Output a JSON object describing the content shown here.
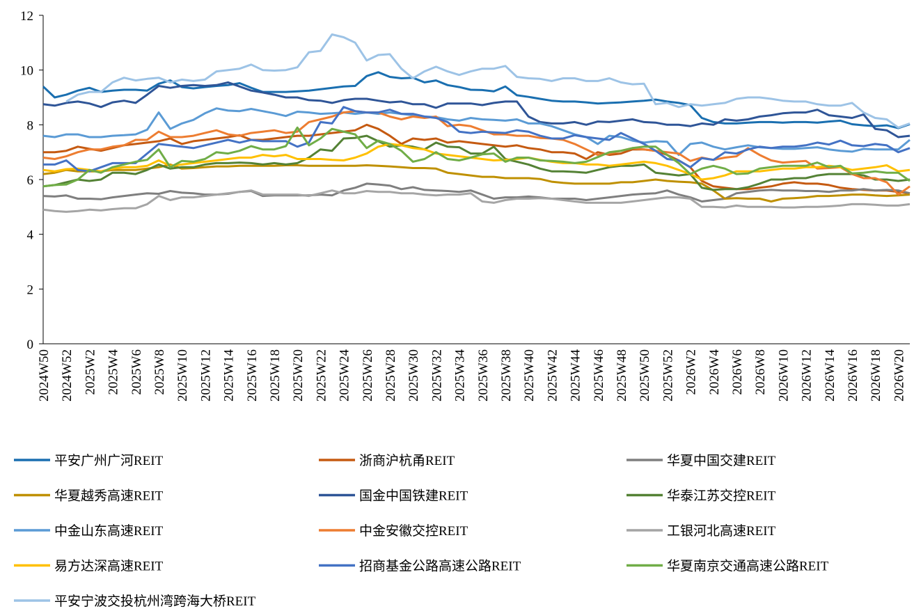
{
  "chart_data": {
    "type": "line",
    "categories": [
      "2024W50",
      null,
      "2024W52",
      null,
      "2025W2",
      null,
      "2025W4",
      null,
      "2025W6",
      null,
      "2025W8",
      null,
      "2025W10",
      null,
      "2025W12",
      null,
      "2025W14",
      null,
      "2025W16",
      null,
      "2025W18",
      null,
      "2025W20",
      null,
      "2025W22",
      null,
      "2025W24",
      null,
      "2025W26",
      null,
      "2025W28",
      null,
      "2025W30",
      null,
      "2025W32",
      null,
      "2025W34",
      null,
      "2025W36",
      null,
      "2025W38",
      null,
      "2025W40",
      null,
      "2025W42",
      null,
      "2025W44",
      null,
      "2025W46",
      null,
      "2025W48",
      null,
      "2025W50",
      null,
      "2025W52",
      null,
      "2026W2",
      null,
      "2026W4",
      null,
      "2026W6",
      null,
      "2026W8",
      null,
      "2026W10",
      null,
      "2026W12",
      null,
      "2026W14",
      null,
      "2026W16",
      null,
      "2026W18",
      null,
      "2026W20",
      null
    ],
    "ylim": [
      0,
      12
    ],
    "yticks": [
      0,
      2,
      4,
      6,
      8,
      10,
      12
    ],
    "grid": false,
    "series": [
      {
        "name": "平安广州广河REIT",
        "color": "#1a6fb0",
        "values": [
          9.4,
          9.0,
          9.1,
          9.25,
          9.35,
          9.2,
          9.25,
          9.28,
          9.28,
          9.25,
          9.5,
          9.62,
          9.38,
          9.33,
          9.38,
          9.42,
          9.45,
          9.52,
          9.35,
          9.2,
          9.2,
          9.2,
          9.22,
          9.25,
          9.3,
          9.35,
          9.4,
          9.42,
          9.78,
          9.92,
          9.75,
          9.7,
          9.72,
          9.55,
          9.62,
          9.45,
          9.38,
          9.28,
          9.27,
          9.22,
          9.4,
          9.08,
          9.02,
          8.95,
          8.88,
          8.85,
          8.85,
          8.82,
          8.78,
          8.8,
          8.82,
          8.85,
          8.88,
          8.92,
          8.85,
          8.8,
          8.72,
          8.25,
          8.1,
          8.05,
          8.05,
          8.08,
          8.1,
          8.1,
          8.08,
          8.1,
          8.1,
          8.08,
          8.12,
          8.15,
          8.02,
          7.98,
          7.95,
          7.98,
          7.88,
          8.02
        ]
      },
      {
        "name": "浙商沪杭甬REIT",
        "color": "#c55a11",
        "values": [
          7.0,
          7.0,
          7.05,
          7.2,
          7.12,
          7.05,
          7.15,
          7.25,
          7.3,
          7.35,
          7.4,
          7.5,
          7.3,
          7.4,
          7.45,
          7.5,
          7.55,
          7.62,
          7.45,
          7.45,
          7.5,
          7.55,
          7.6,
          7.6,
          7.65,
          7.7,
          7.75,
          7.8,
          8.0,
          7.85,
          7.6,
          7.3,
          7.5,
          7.45,
          7.5,
          7.35,
          7.4,
          7.35,
          7.3,
          7.25,
          7.2,
          7.25,
          7.15,
          7.1,
          7.0,
          7.0,
          6.95,
          6.75,
          7.0,
          6.9,
          6.95,
          7.1,
          7.1,
          7.05,
          6.9,
          6.7,
          6.45,
          5.95,
          5.75,
          5.7,
          5.65,
          5.65,
          5.7,
          5.75,
          5.85,
          5.9,
          5.85,
          5.85,
          5.8,
          5.7,
          5.65,
          5.62,
          5.6,
          5.6,
          5.55,
          5.5
        ]
      },
      {
        "name": "华夏中国交建REIT",
        "color": "#7f7f7f",
        "values": [
          5.4,
          5.38,
          5.42,
          5.3,
          5.3,
          5.28,
          5.35,
          5.4,
          5.45,
          5.5,
          5.48,
          5.58,
          5.52,
          5.5,
          5.45,
          5.45,
          5.48,
          5.55,
          5.58,
          5.4,
          5.42,
          5.42,
          5.42,
          5.42,
          5.45,
          5.42,
          5.6,
          5.7,
          5.85,
          5.82,
          5.78,
          5.65,
          5.72,
          5.62,
          5.6,
          5.58,
          5.55,
          5.6,
          5.45,
          5.3,
          5.35,
          5.35,
          5.38,
          5.35,
          5.3,
          5.3,
          5.3,
          5.25,
          5.3,
          5.35,
          5.4,
          5.45,
          5.48,
          5.5,
          5.6,
          5.45,
          5.35,
          5.2,
          5.25,
          5.3,
          5.5,
          5.55,
          5.6,
          5.62,
          5.6,
          5.6,
          5.58,
          5.58,
          5.55,
          5.6,
          5.6,
          5.65,
          5.6,
          5.62,
          5.6,
          5.5
        ]
      },
      {
        "name": "华夏越秀高速REIT",
        "color": "#bf9000",
        "values": [
          6.2,
          6.25,
          6.35,
          6.3,
          6.3,
          6.3,
          6.35,
          6.35,
          6.35,
          6.4,
          6.45,
          6.55,
          6.4,
          6.42,
          6.45,
          6.48,
          6.48,
          6.5,
          6.5,
          6.5,
          6.5,
          6.52,
          6.52,
          6.5,
          6.5,
          6.5,
          6.5,
          6.5,
          6.52,
          6.5,
          6.48,
          6.45,
          6.42,
          6.42,
          6.4,
          6.25,
          6.2,
          6.15,
          6.1,
          6.1,
          6.05,
          6.05,
          6.05,
          6.02,
          5.92,
          5.88,
          5.85,
          5.85,
          5.85,
          5.85,
          5.9,
          5.9,
          5.95,
          6.0,
          5.95,
          5.92,
          5.9,
          5.85,
          5.6,
          5.3,
          5.32,
          5.3,
          5.3,
          5.2,
          5.3,
          5.32,
          5.35,
          5.4,
          5.4,
          5.42,
          5.45,
          5.45,
          5.42,
          5.4,
          5.42,
          5.45
        ]
      },
      {
        "name": "国金中国铁建REIT",
        "color": "#2f5597",
        "values": [
          8.75,
          8.7,
          8.8,
          8.85,
          8.78,
          8.65,
          8.82,
          8.88,
          8.8,
          9.1,
          9.42,
          9.35,
          9.42,
          9.45,
          9.42,
          9.45,
          9.55,
          9.4,
          9.25,
          9.18,
          9.1,
          9.0,
          9.0,
          8.9,
          8.88,
          8.8,
          8.9,
          8.95,
          8.95,
          8.88,
          8.82,
          8.85,
          8.75,
          8.75,
          8.62,
          8.78,
          8.78,
          8.78,
          8.72,
          8.8,
          8.85,
          8.85,
          8.3,
          8.1,
          8.05,
          8.05,
          8.1,
          8.0,
          8.12,
          8.1,
          8.15,
          8.2,
          8.1,
          8.08,
          8.0,
          8.0,
          7.95,
          8.05,
          8.0,
          8.2,
          8.15,
          8.2,
          8.3,
          8.35,
          8.42,
          8.45,
          8.45,
          8.55,
          8.35,
          8.3,
          8.25,
          8.38,
          7.85,
          7.8,
          7.55,
          7.6
        ]
      },
      {
        "name": "华泰江苏交控REIT",
        "color": "#548235",
        "values": [
          5.75,
          5.8,
          5.9,
          6.0,
          5.95,
          6.0,
          6.25,
          6.25,
          6.2,
          6.35,
          6.55,
          6.4,
          6.45,
          6.45,
          6.55,
          6.6,
          6.6,
          6.62,
          6.6,
          6.55,
          6.6,
          6.55,
          6.6,
          6.8,
          7.1,
          7.05,
          7.5,
          7.52,
          7.6,
          7.4,
          7.2,
          7.25,
          7.2,
          7.1,
          7.35,
          7.2,
          7.18,
          6.95,
          6.95,
          7.2,
          6.75,
          6.65,
          6.55,
          6.4,
          6.3,
          6.3,
          6.28,
          6.25,
          6.35,
          6.45,
          6.5,
          6.5,
          6.55,
          6.25,
          6.2,
          6.15,
          6.2,
          5.7,
          5.62,
          5.65,
          5.65,
          5.72,
          5.85,
          6.0,
          6.0,
          6.05,
          6.05,
          6.15,
          6.2,
          6.2,
          6.2,
          6.15,
          6.0,
          6.0,
          5.95,
          6.0
        ]
      },
      {
        "name": "中金山东高速REIT",
        "color": "#5b9bd5",
        "values": [
          7.6,
          7.55,
          7.65,
          7.65,
          7.55,
          7.55,
          7.6,
          7.62,
          7.65,
          7.82,
          8.45,
          7.85,
          8.05,
          8.18,
          8.42,
          8.6,
          8.52,
          8.5,
          8.58,
          8.5,
          8.42,
          8.32,
          8.48,
          8.45,
          8.4,
          8.42,
          8.45,
          8.4,
          8.45,
          8.4,
          8.45,
          8.4,
          8.35,
          8.3,
          8.28,
          8.2,
          8.15,
          8.25,
          8.2,
          8.18,
          8.15,
          8.2,
          8.05,
          8.05,
          7.95,
          7.8,
          7.65,
          7.55,
          7.3,
          7.6,
          7.55,
          7.42,
          7.35,
          7.4,
          7.38,
          6.9,
          7.3,
          7.35,
          7.2,
          7.1,
          7.18,
          7.25,
          7.18,
          7.15,
          7.12,
          7.12,
          7.15,
          7.18,
          7.1,
          7.05,
          7.02,
          7.12,
          7.1,
          7.1,
          7.1,
          7.45
        ]
      },
      {
        "name": "中金安徽交控REIT",
        "color": "#ed7d31",
        "values": [
          6.8,
          6.75,
          6.85,
          7.0,
          7.1,
          7.1,
          7.2,
          7.25,
          7.45,
          7.45,
          7.75,
          7.55,
          7.55,
          7.6,
          7.7,
          7.8,
          7.65,
          7.6,
          7.7,
          7.75,
          7.8,
          7.7,
          7.75,
          8.1,
          8.2,
          8.3,
          8.45,
          8.5,
          8.45,
          8.45,
          8.3,
          8.2,
          8.3,
          8.25,
          8.3,
          7.95,
          8.0,
          7.95,
          7.8,
          7.65,
          7.65,
          7.6,
          7.6,
          7.52,
          7.5,
          7.45,
          7.3,
          7.1,
          6.9,
          6.95,
          7.05,
          7.15,
          7.1,
          7.05,
          7.0,
          6.95,
          6.68,
          6.8,
          6.72,
          6.8,
          6.85,
          7.15,
          6.9,
          6.7,
          6.62,
          6.65,
          6.68,
          6.4,
          6.42,
          6.45,
          6.2,
          6.05,
          6.05,
          5.9,
          5.45,
          5.75
        ]
      },
      {
        "name": "工银河北高速REIT",
        "color": "#a5a5a5",
        "values": [
          4.9,
          4.85,
          4.82,
          4.85,
          4.9,
          4.87,
          4.92,
          4.95,
          4.95,
          5.1,
          5.4,
          5.25,
          5.35,
          5.35,
          5.4,
          5.45,
          5.5,
          5.55,
          5.6,
          5.45,
          5.45,
          5.45,
          5.45,
          5.4,
          5.5,
          5.6,
          5.5,
          5.5,
          5.58,
          5.55,
          5.55,
          5.5,
          5.5,
          5.45,
          5.42,
          5.45,
          5.45,
          5.5,
          5.2,
          5.15,
          5.25,
          5.3,
          5.3,
          5.32,
          5.3,
          5.25,
          5.2,
          5.15,
          5.15,
          5.15,
          5.15,
          5.2,
          5.25,
          5.3,
          5.35,
          5.35,
          5.3,
          5.0,
          5.0,
          4.98,
          5.05,
          5.0,
          5.0,
          5.0,
          4.98,
          4.98,
          5.0,
          5.0,
          5.02,
          5.05,
          5.1,
          5.1,
          5.08,
          5.05,
          5.05,
          5.1
        ]
      },
      {
        "name": "易方达深高速REIT",
        "color": "#ffc000",
        "values": [
          6.35,
          6.3,
          6.38,
          6.4,
          6.35,
          6.3,
          6.4,
          6.45,
          6.45,
          6.5,
          6.7,
          6.5,
          6.55,
          6.6,
          6.65,
          6.7,
          6.75,
          6.8,
          6.8,
          6.9,
          6.85,
          6.9,
          6.75,
          6.75,
          6.75,
          6.72,
          6.7,
          6.8,
          6.95,
          7.2,
          7.3,
          7.25,
          7.15,
          7.1,
          6.95,
          6.9,
          6.85,
          6.8,
          6.75,
          6.7,
          6.72,
          6.75,
          6.8,
          6.72,
          6.65,
          6.6,
          6.6,
          6.55,
          6.55,
          6.5,
          6.55,
          6.6,
          6.65,
          6.6,
          6.5,
          6.35,
          6.2,
          6.0,
          6.05,
          6.15,
          6.3,
          6.3,
          6.3,
          6.35,
          6.4,
          6.4,
          6.45,
          6.45,
          6.5,
          6.45,
          6.35,
          6.4,
          6.45,
          6.52,
          6.3,
          6.35
        ]
      },
      {
        "name": "招商基金公路高速公路REIT",
        "color": "#4472c4",
        "values": [
          6.55,
          6.55,
          6.7,
          6.35,
          6.3,
          6.45,
          6.6,
          6.6,
          6.6,
          6.95,
          7.3,
          7.25,
          7.2,
          7.15,
          7.25,
          7.35,
          7.45,
          7.35,
          7.45,
          7.4,
          7.4,
          7.4,
          7.2,
          7.35,
          8.1,
          8.05,
          8.65,
          8.5,
          8.45,
          8.45,
          8.55,
          8.4,
          8.4,
          8.3,
          8.25,
          8.1,
          7.75,
          7.7,
          7.75,
          7.72,
          7.7,
          7.8,
          7.75,
          7.6,
          7.5,
          7.5,
          7.62,
          7.55,
          7.5,
          7.45,
          7.7,
          7.5,
          7.3,
          7.05,
          6.75,
          6.7,
          6.45,
          6.78,
          6.72,
          7.0,
          6.95,
          7.1,
          7.2,
          7.15,
          7.2,
          7.2,
          7.25,
          7.35,
          7.28,
          7.42,
          7.25,
          7.22,
          7.3,
          7.25,
          7.0,
          7.15
        ]
      },
      {
        "name": "华夏南京交通高速公路REIT",
        "color": "#70ad47",
        "values": [
          5.75,
          5.8,
          5.82,
          6.0,
          6.35,
          6.25,
          6.45,
          6.55,
          6.65,
          6.72,
          7.1,
          6.45,
          6.68,
          6.65,
          6.75,
          7.0,
          6.95,
          7.05,
          7.22,
          7.1,
          7.1,
          7.22,
          7.9,
          7.25,
          7.5,
          7.85,
          7.75,
          7.65,
          7.15,
          7.42,
          7.3,
          7.05,
          6.65,
          6.75,
          7.0,
          6.75,
          6.7,
          6.8,
          6.92,
          6.95,
          6.65,
          6.8,
          6.8,
          6.7,
          6.68,
          6.65,
          6.6,
          6.65,
          6.82,
          7.0,
          7.05,
          7.15,
          7.2,
          7.2,
          6.9,
          6.6,
          6.2,
          6.4,
          6.5,
          6.4,
          6.2,
          6.22,
          6.4,
          6.45,
          6.5,
          6.5,
          6.5,
          6.62,
          6.45,
          6.5,
          6.22,
          6.25,
          6.3,
          6.25,
          6.25,
          5.95
        ]
      },
      {
        "name": "平安宁波交投杭州湾跨海大桥REIT",
        "color": "#9dc3e6",
        "values": [
          null,
          null,
          8.85,
          9.1,
          9.2,
          9.2,
          9.55,
          9.72,
          9.62,
          9.68,
          9.72,
          9.55,
          9.65,
          9.6,
          9.65,
          9.95,
          10.0,
          10.05,
          10.2,
          10.0,
          9.98,
          10.0,
          10.1,
          10.65,
          10.7,
          11.3,
          11.2,
          11.0,
          10.35,
          10.55,
          10.58,
          10.05,
          9.7,
          9.95,
          10.12,
          9.95,
          9.82,
          9.95,
          10.05,
          10.05,
          10.15,
          9.75,
          9.7,
          9.68,
          9.6,
          9.7,
          9.7,
          9.6,
          9.6,
          9.7,
          9.55,
          9.48,
          9.5,
          8.75,
          8.8,
          8.65,
          8.75,
          8.7,
          8.75,
          8.8,
          8.95,
          9.0,
          9.0,
          8.95,
          8.88,
          8.85,
          8.85,
          8.75,
          8.7,
          8.7,
          8.8,
          8.45,
          8.25,
          8.2,
          7.9,
          8.05
        ]
      }
    ]
  }
}
